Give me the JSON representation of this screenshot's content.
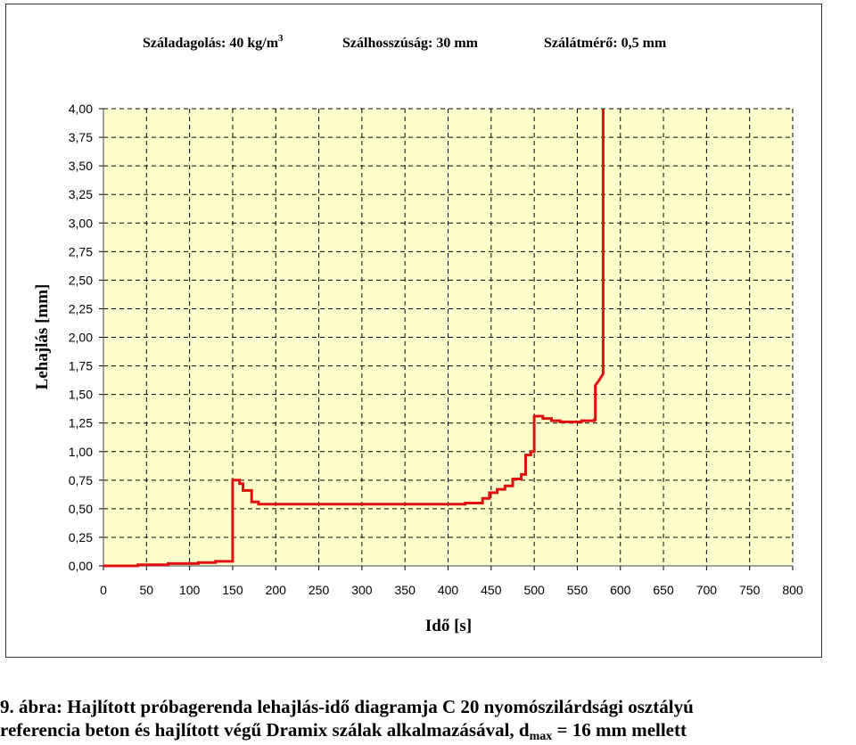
{
  "chart_data": {
    "type": "line",
    "title_parts": {
      "dose": "Száladagolás: 40 kg/m",
      "dose_sup": "3",
      "length": "Szálhosszúság: 30 mm",
      "diameter": "Szálátmérő: 0,5 mm"
    },
    "xlabel": "Idő [s]",
    "ylabel": "Lehajlás [mm]",
    "xlim": [
      0,
      800
    ],
    "ylim": [
      0,
      4
    ],
    "x_ticks": [
      "0",
      "50",
      "100",
      "150",
      "200",
      "250",
      "300",
      "350",
      "400",
      "450",
      "500",
      "550",
      "600",
      "650",
      "700",
      "750",
      "800"
    ],
    "y_ticks": [
      "0,00",
      "0,25",
      "0,50",
      "0,75",
      "1,00",
      "1,25",
      "1,50",
      "1,75",
      "2,00",
      "2,25",
      "2,50",
      "2,75",
      "3,00",
      "3,25",
      "3,50",
      "3,75",
      "4,00"
    ],
    "grid": true,
    "colors": {
      "plot_bg": "#ffffcc",
      "line": "#e01010",
      "grid": "#000000"
    },
    "series": [
      {
        "points": [
          [
            0,
            0.0
          ],
          [
            40,
            0.0
          ],
          [
            40,
            0.01
          ],
          [
            75,
            0.01
          ],
          [
            75,
            0.02
          ],
          [
            110,
            0.02
          ],
          [
            110,
            0.03
          ],
          [
            130,
            0.03
          ],
          [
            130,
            0.04
          ],
          [
            150,
            0.04
          ],
          [
            150,
            0.75
          ],
          [
            158,
            0.75
          ],
          [
            158,
            0.72
          ],
          [
            162,
            0.72
          ],
          [
            162,
            0.66
          ],
          [
            172,
            0.66
          ],
          [
            172,
            0.56
          ],
          [
            180,
            0.56
          ],
          [
            180,
            0.54
          ],
          [
            420,
            0.54
          ],
          [
            420,
            0.55
          ],
          [
            440,
            0.55
          ],
          [
            440,
            0.59
          ],
          [
            448,
            0.59
          ],
          [
            448,
            0.64
          ],
          [
            457,
            0.64
          ],
          [
            457,
            0.67
          ],
          [
            466,
            0.67
          ],
          [
            466,
            0.7
          ],
          [
            475,
            0.7
          ],
          [
            475,
            0.76
          ],
          [
            485,
            0.76
          ],
          [
            485,
            0.8
          ],
          [
            490,
            0.8
          ],
          [
            490,
            0.97
          ],
          [
            496,
            0.97
          ],
          [
            496,
            1.0
          ],
          [
            500,
            1.0
          ],
          [
            500,
            1.31
          ],
          [
            510,
            1.31
          ],
          [
            510,
            1.29
          ],
          [
            520,
            1.29
          ],
          [
            520,
            1.27
          ],
          [
            530,
            1.27
          ],
          [
            530,
            1.26
          ],
          [
            555,
            1.26
          ],
          [
            555,
            1.27
          ],
          [
            570,
            1.27
          ],
          [
            570,
            1.28
          ],
          [
            571,
            1.28
          ],
          [
            571,
            1.58
          ],
          [
            575,
            1.62
          ],
          [
            580,
            1.68
          ],
          [
            580,
            4.0
          ]
        ]
      }
    ]
  },
  "caption": {
    "line1": "9. ábra: Hajlított próbagerenda lehajlás-idő diagramja C 20 nyomószilárdsági osztályú",
    "line2_main": "referencia beton és hajlított végű Dramix szálak alkalmazásával, d",
    "line2_sub": "max",
    "line2_end": " = 16 mm mellett"
  }
}
